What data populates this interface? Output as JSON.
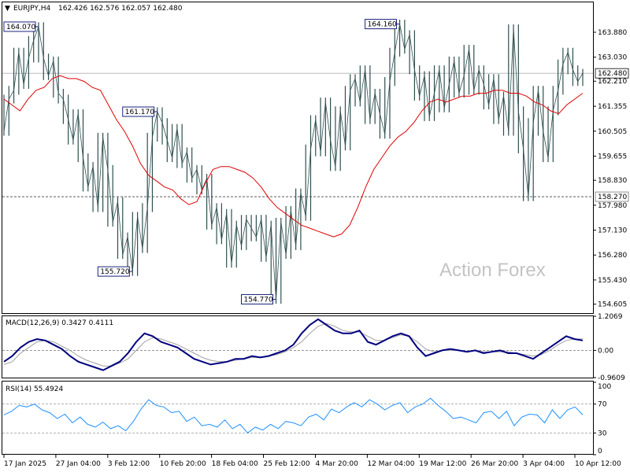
{
  "header": {
    "arrow": "▼",
    "symbol_tf": "EURJPY,H4",
    "ohlc": "162.426 162.576 162.057 162.480"
  },
  "watermark": "Action Forex",
  "colors": {
    "price": "#2f4f4f",
    "ma": "#e00000",
    "macd": "#000080",
    "signal": "#a0a0a0",
    "rsi": "#1e90ff",
    "callout": "#1a237e"
  },
  "chart_data": [
    {
      "type": "line",
      "title": "EURJPY,H4",
      "subtitle": "162.426 162.576 162.057 162.480",
      "ylim": [
        154.3,
        164.9
      ],
      "y_ticks": [
        "163.880",
        "163.030",
        "162.210",
        "161.355",
        "160.505",
        "159.655",
        "158.830",
        "157.980",
        "157.130",
        "156.280",
        "155.430",
        "154.605"
      ],
      "current_price": "162.480",
      "level": "158.270",
      "series": [
        {
          "values": [
            160.5,
            161.6,
            161.9,
            163.2,
            162.1,
            163.0,
            163.6,
            164.07,
            163.0,
            162.4,
            162.9,
            161.8,
            161.6,
            160.9,
            160.2,
            161.1,
            159.6,
            158.6,
            159.3,
            157.9,
            160.3,
            159.2,
            157.4,
            158.1,
            156.3,
            156.9,
            155.72,
            157.6,
            156.5,
            157.9,
            160.3,
            161.17,
            160.8,
            160.2,
            159.6,
            160.6,
            159.4,
            159.8,
            158.9,
            159.2,
            158.5,
            158.9,
            157.3,
            157.9,
            156.8,
            157.7,
            156.0,
            157.3,
            156.6,
            157.5,
            157.2,
            156.9,
            157.5,
            156.2,
            157.3,
            154.77,
            157.4,
            156.3,
            157.8,
            156.6,
            158.4,
            157.6,
            159.9,
            160.9,
            159.8,
            161.5,
            160.2,
            159.3,
            161.2,
            160.0,
            161.9,
            162.3,
            161.5,
            162.6,
            160.9,
            161.8,
            161.1,
            160.4,
            162.2,
            163.2,
            164.16,
            163.3,
            163.8,
            162.6,
            161.7,
            162.4,
            161.0,
            161.8,
            162.6,
            161.3,
            162.1,
            162.9,
            161.8,
            162.4,
            163.3,
            161.9,
            162.6,
            162.1,
            161.4,
            162.3,
            160.9,
            161.7,
            160.5,
            164.0,
            161.2,
            159.9,
            158.27,
            160.8,
            161.9,
            160.5,
            159.6,
            161.2,
            161.9,
            162.8,
            163.2,
            162.6,
            162.2,
            162.48
          ]
        },
        {
          "values": [
            161.6,
            161.4,
            161.2,
            161.6,
            161.9,
            162.0,
            162.3,
            162.4,
            162.3,
            162.3,
            162.2,
            162.0,
            161.9,
            161.4,
            160.9,
            160.5,
            160.0,
            159.4,
            159.0,
            158.8,
            158.6,
            158.5,
            158.2,
            158.0,
            158.1,
            158.7,
            159.2,
            159.3,
            159.3,
            159.2,
            159.1,
            158.9,
            158.6,
            158.2,
            157.9,
            157.7,
            157.5,
            157.3,
            157.2,
            157.1,
            157.0,
            156.9,
            157.0,
            157.3,
            157.9,
            158.6,
            159.2,
            159.6,
            160.0,
            160.3,
            160.5,
            160.8,
            161.2,
            161.5,
            161.6,
            161.5,
            161.6,
            161.7,
            161.7,
            161.8,
            161.8,
            161.9,
            161.9,
            161.8,
            161.8,
            161.7,
            161.5,
            161.4,
            161.2,
            161.1,
            161.4,
            161.6,
            161.8
          ]
        }
      ],
      "callouts": [
        "164.070",
        "161.170",
        "155.720",
        "154.770",
        "164.160"
      ]
    },
    {
      "type": "line",
      "title": "MACD(12,26,9) 0.3427 0.4111",
      "ylim": [
        -0.9609,
        1.2069
      ],
      "y_ticks": [
        "1.2069",
        "0.00",
        "-0.9609"
      ],
      "series": [
        {
          "values": [
            -0.4,
            -0.2,
            0.1,
            0.3,
            0.4,
            0.35,
            0.2,
            0.05,
            -0.2,
            -0.4,
            -0.5,
            -0.6,
            -0.7,
            -0.55,
            -0.4,
            -0.1,
            0.3,
            0.6,
            0.5,
            0.3,
            0.2,
            0.1,
            -0.1,
            -0.3,
            -0.4,
            -0.5,
            -0.45,
            -0.4,
            -0.3,
            -0.3,
            -0.2,
            -0.25,
            -0.2,
            -0.1,
            0.0,
            0.2,
            0.6,
            0.9,
            1.1,
            0.9,
            0.7,
            0.6,
            0.6,
            0.7,
            0.3,
            0.2,
            0.35,
            0.5,
            0.6,
            0.5,
            0.1,
            -0.2,
            -0.1,
            0.0,
            0.05,
            0.0,
            -0.05,
            0.0,
            -0.1,
            -0.05,
            0.0,
            -0.1,
            -0.1,
            -0.2,
            -0.3,
            -0.1,
            0.1,
            0.3,
            0.5,
            0.4,
            0.35
          ]
        },
        {
          "values": [
            -0.5,
            -0.4,
            -0.1,
            0.1,
            0.3,
            0.35,
            0.3,
            0.15,
            0.0,
            -0.2,
            -0.35,
            -0.45,
            -0.55,
            -0.55,
            -0.45,
            -0.3,
            0.0,
            0.3,
            0.45,
            0.4,
            0.3,
            0.2,
            0.05,
            -0.1,
            -0.25,
            -0.35,
            -0.4,
            -0.4,
            -0.35,
            -0.3,
            -0.25,
            -0.25,
            -0.2,
            -0.15,
            -0.05,
            0.1,
            0.3,
            0.6,
            0.85,
            0.95,
            0.85,
            0.7,
            0.65,
            0.65,
            0.5,
            0.35,
            0.35,
            0.45,
            0.55,
            0.5,
            0.3,
            0.05,
            -0.05,
            0.0,
            0.0,
            0.0,
            -0.05,
            0.0,
            -0.05,
            -0.05,
            -0.05,
            -0.05,
            -0.1,
            -0.15,
            -0.2,
            -0.15,
            0.0,
            0.2,
            0.35,
            0.4,
            0.41
          ]
        }
      ]
    },
    {
      "type": "line",
      "title": "RSI(14) 55.4924",
      "ylim": [
        0,
        100
      ],
      "y_ticks": [
        "100",
        "70",
        "30",
        "0"
      ],
      "series": [
        {
          "values": [
            55,
            60,
            68,
            66,
            70,
            62,
            58,
            50,
            56,
            44,
            52,
            42,
            38,
            45,
            36,
            40,
            33,
            46,
            63,
            76,
            68,
            66,
            58,
            60,
            46,
            52,
            40,
            42,
            38,
            48,
            36,
            42,
            30,
            38,
            34,
            42,
            36,
            46,
            44,
            40,
            52,
            56,
            48,
            63,
            58,
            66,
            72,
            66,
            76,
            70,
            62,
            68,
            72,
            58,
            66,
            70,
            78,
            68,
            60,
            50,
            52,
            48,
            44,
            58,
            60,
            50,
            60,
            40,
            52,
            56,
            55,
            44,
            62,
            50,
            62,
            66,
            55
          ]
        }
      ]
    }
  ],
  "x_axis_labels": [
    "17 Jan 2025",
    "27 Jan 04:00",
    "3 Feb 12:00",
    "10 Feb 20:00",
    "18 Feb 04:00",
    "25 Feb 12:00",
    "4 Mar 20:00",
    "12 Mar 04:00",
    "19 Mar 12:00",
    "26 Mar 20:00",
    "3 Apr 04:00",
    "10 Apr 12:00"
  ]
}
